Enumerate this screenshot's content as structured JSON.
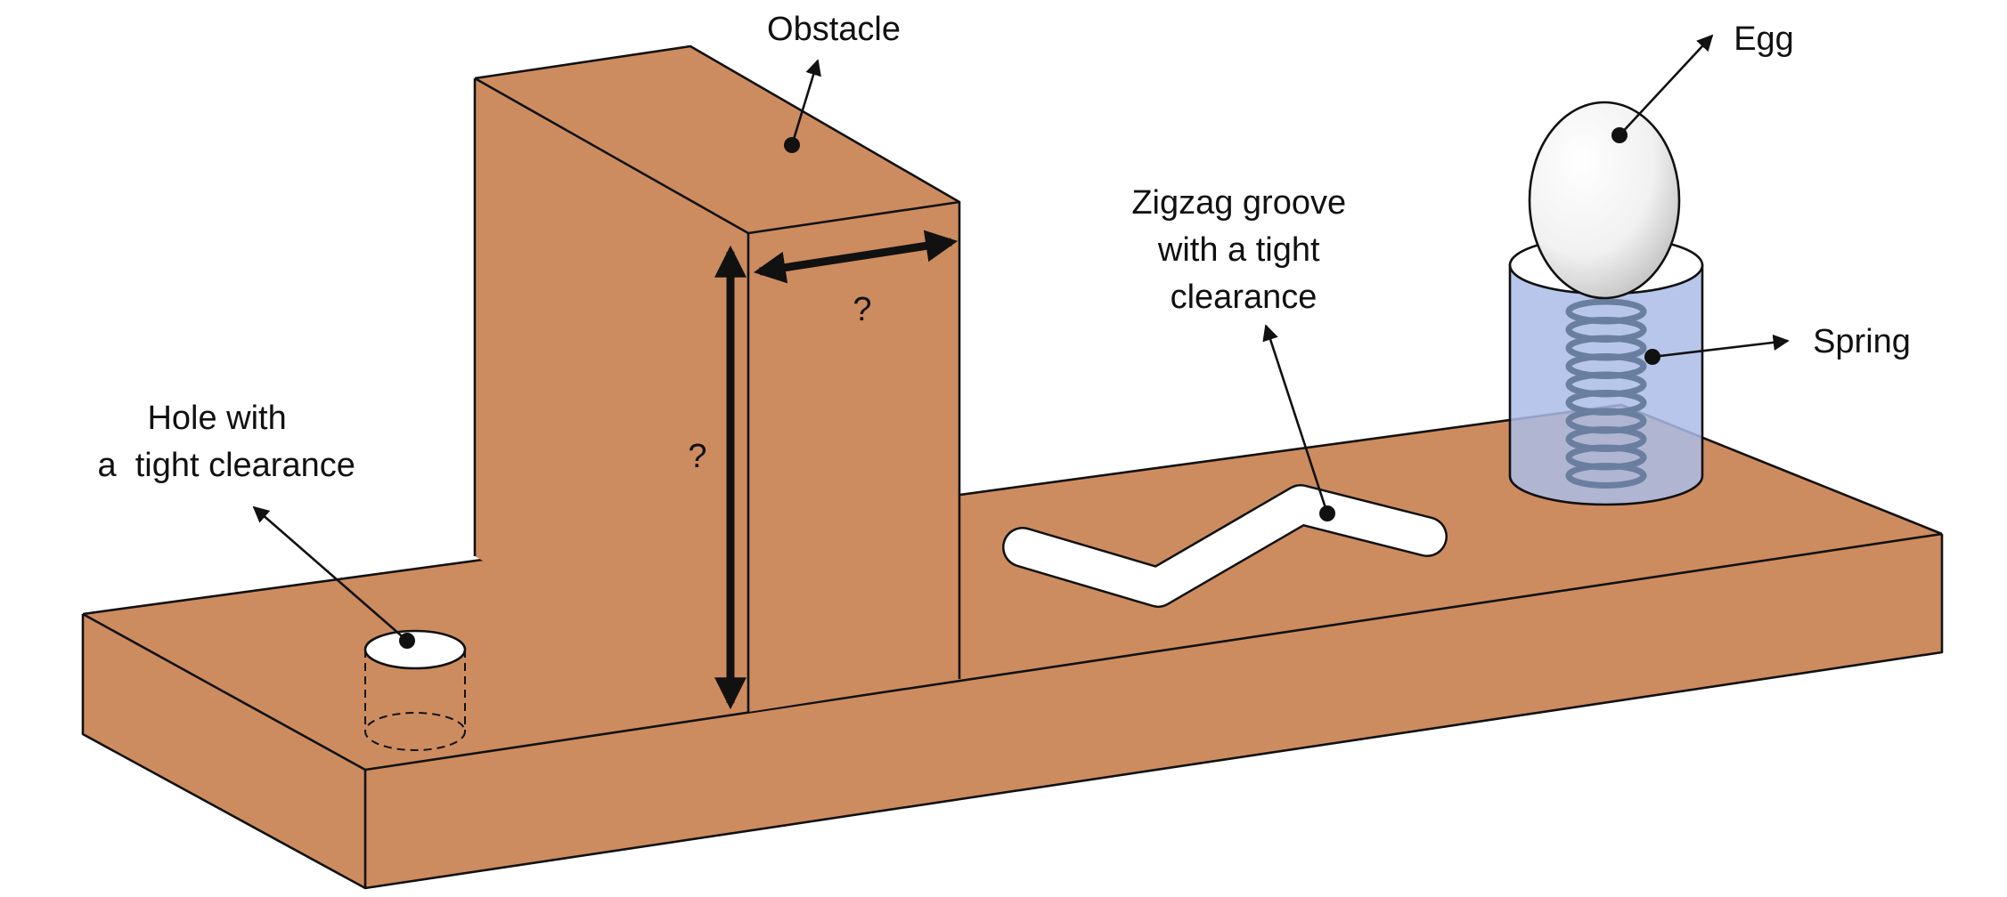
{
  "labels": {
    "obstacle": "Obstacle",
    "egg": "Egg",
    "spring": "Spring",
    "zigzag": [
      "Zigzag groove",
      "with a tight",
      "clearance"
    ],
    "hole": [
      "Hole with",
      "a  tight clearance"
    ],
    "obstacle_depth": "?",
    "obstacle_height": "?"
  },
  "colors": {
    "wood": "#CD8C5F",
    "outline": "#111111",
    "cup": "#AABCE6",
    "spring": "#6A7F9F",
    "egg": "#F4F4F4"
  }
}
